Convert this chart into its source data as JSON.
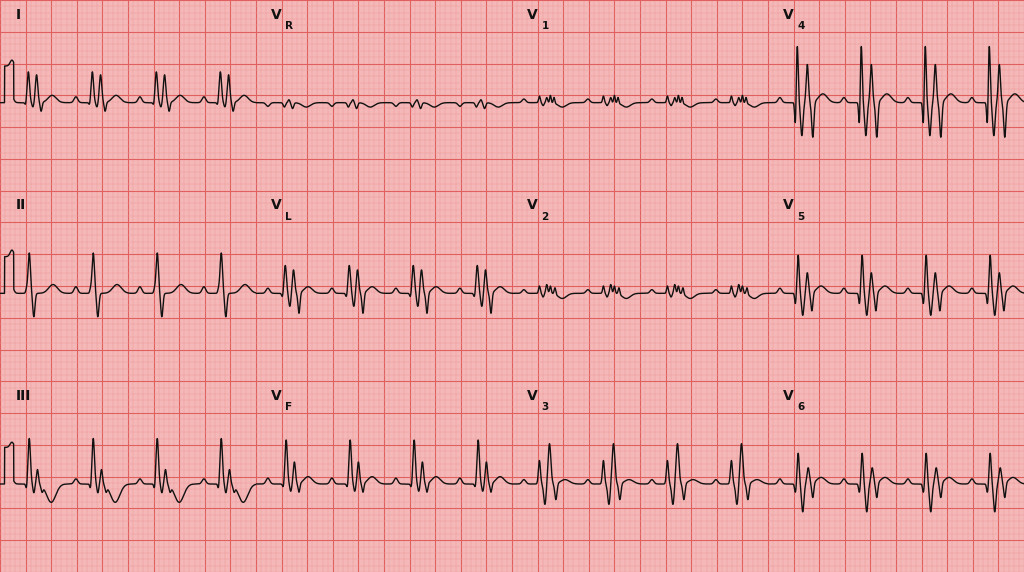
{
  "bg_color": "#F5B8B8",
  "grid_major_color": "#E06060",
  "grid_minor_color": "#EE9999",
  "line_color": "#111111",
  "line_width": 1.0,
  "fig_width": 10.24,
  "fig_height": 5.72,
  "dpi": 100,
  "panels": [
    {
      "label": "I",
      "col": 0,
      "row": 2
    },
    {
      "label": "VR",
      "col": 1,
      "row": 2
    },
    {
      "label": "V1",
      "col": 2,
      "row": 2
    },
    {
      "label": "V4",
      "col": 3,
      "row": 2
    },
    {
      "label": "II",
      "col": 0,
      "row": 1
    },
    {
      "label": "VL",
      "col": 1,
      "row": 1
    },
    {
      "label": "V2",
      "col": 2,
      "row": 1
    },
    {
      "label": "V5",
      "col": 3,
      "row": 1
    },
    {
      "label": "III",
      "col": 0,
      "row": 0
    },
    {
      "label": "VF",
      "col": 1,
      "row": 0
    },
    {
      "label": "V3",
      "col": 2,
      "row": 0
    },
    {
      "label": "V6",
      "col": 3,
      "row": 0
    }
  ],
  "lm": 0.0,
  "rm": 1.0,
  "bm": 0.0,
  "tm": 1.0,
  "rows": 3,
  "cols": 4,
  "duration": 2.8,
  "fs": 1000,
  "ylim": [
    -1.2,
    1.4
  ]
}
